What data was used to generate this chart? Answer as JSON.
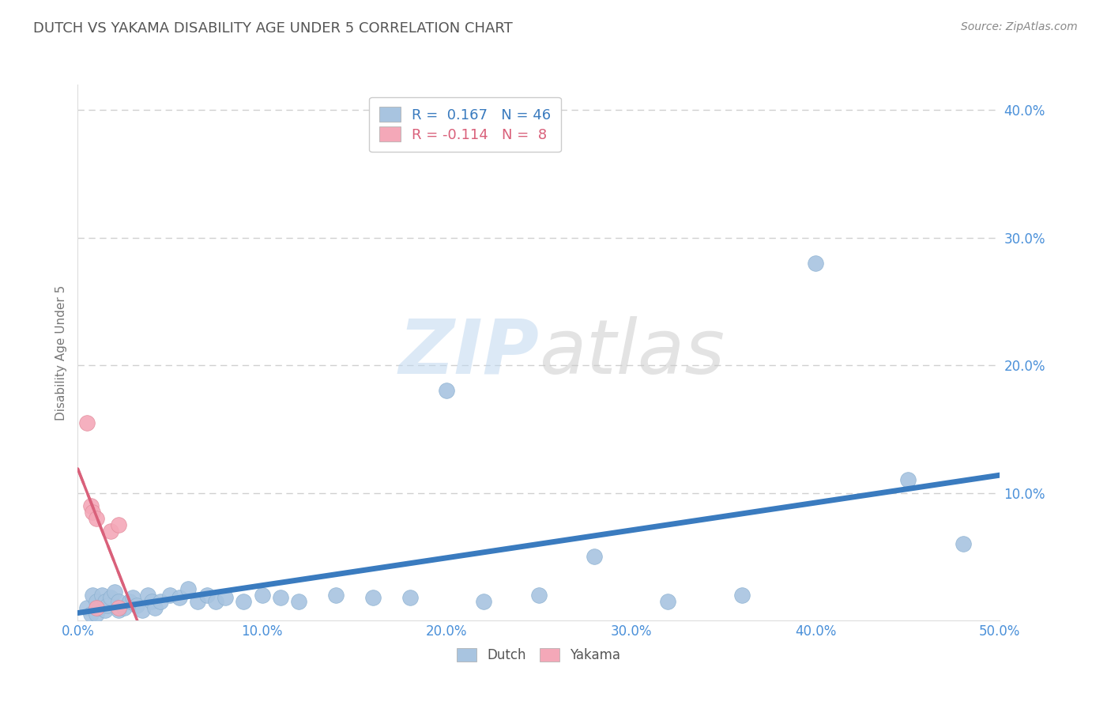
{
  "title": "DUTCH VS YAKAMA DISABILITY AGE UNDER 5 CORRELATION CHART",
  "source": "Source: ZipAtlas.com",
  "ylabel": "Disability Age Under 5",
  "xlim": [
    0.0,
    0.5
  ],
  "ylim": [
    0.0,
    0.42
  ],
  "xticks": [
    0.0,
    0.1,
    0.2,
    0.3,
    0.4,
    0.5
  ],
  "yticks": [
    0.1,
    0.2,
    0.3,
    0.4
  ],
  "xticklabels": [
    "0.0%",
    "10.0%",
    "20.0%",
    "30.0%",
    "40.0%",
    "50.0%"
  ],
  "yticklabels": [
    "10.0%",
    "20.0%",
    "30.0%",
    "40.0%"
  ],
  "dutch_R": 0.167,
  "dutch_N": 46,
  "yakama_R": -0.114,
  "yakama_N": 8,
  "dutch_color": "#a8c4e0",
  "dutch_line_color": "#3a7bbf",
  "yakama_color": "#f4a8b8",
  "yakama_line_color": "#d9607a",
  "background_color": "#ffffff",
  "title_color": "#3a7bbf",
  "source_color": "#888888",
  "grid_color": "#d0d0d0",
  "tick_color": "#4a90d9",
  "dutch_x": [
    0.005,
    0.007,
    0.008,
    0.01,
    0.01,
    0.012,
    0.013,
    0.015,
    0.015,
    0.016,
    0.018,
    0.02,
    0.022,
    0.022,
    0.025,
    0.028,
    0.03,
    0.032,
    0.035,
    0.038,
    0.04,
    0.042,
    0.045,
    0.05,
    0.055,
    0.06,
    0.065,
    0.07,
    0.075,
    0.08,
    0.09,
    0.1,
    0.11,
    0.12,
    0.14,
    0.16,
    0.18,
    0.2,
    0.22,
    0.25,
    0.28,
    0.32,
    0.36,
    0.4,
    0.45,
    0.48
  ],
  "dutch_y": [
    0.01,
    0.005,
    0.02,
    0.005,
    0.015,
    0.01,
    0.02,
    0.015,
    0.008,
    0.012,
    0.018,
    0.022,
    0.008,
    0.015,
    0.01,
    0.015,
    0.018,
    0.012,
    0.008,
    0.02,
    0.015,
    0.01,
    0.015,
    0.02,
    0.018,
    0.025,
    0.015,
    0.02,
    0.015,
    0.018,
    0.015,
    0.02,
    0.018,
    0.015,
    0.02,
    0.018,
    0.018,
    0.18,
    0.015,
    0.02,
    0.05,
    0.015,
    0.02,
    0.28,
    0.11,
    0.06
  ],
  "yakama_x": [
    0.005,
    0.007,
    0.008,
    0.018,
    0.022,
    0.01,
    0.022,
    0.01
  ],
  "yakama_y": [
    0.155,
    0.09,
    0.085,
    0.07,
    0.075,
    0.08,
    0.01,
    0.01
  ]
}
